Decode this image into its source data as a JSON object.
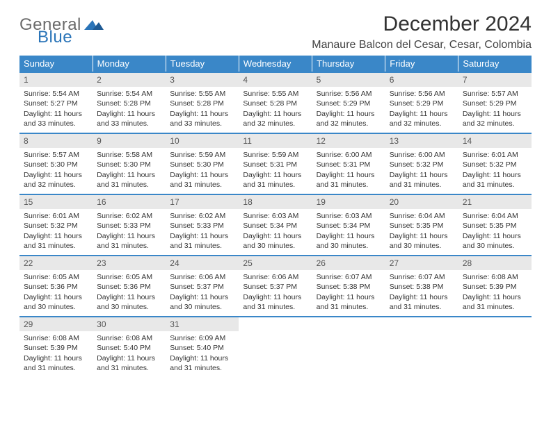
{
  "brand": {
    "general": "General",
    "blue": "Blue"
  },
  "title": "December 2024",
  "location": "Manaure Balcon del Cesar, Cesar, Colombia",
  "colors": {
    "header_bg": "#3a87c8",
    "header_text": "#ffffff",
    "daynum_bg": "#e8e8e8",
    "row_border": "#3a87c8",
    "logo_gray": "#6b6b6b",
    "logo_blue": "#2a74b8"
  },
  "weekdays": [
    "Sunday",
    "Monday",
    "Tuesday",
    "Wednesday",
    "Thursday",
    "Friday",
    "Saturday"
  ],
  "days": [
    {
      "n": 1,
      "sr": "5:54 AM",
      "ss": "5:27 PM",
      "dl": "11 hours and 33 minutes."
    },
    {
      "n": 2,
      "sr": "5:54 AM",
      "ss": "5:28 PM",
      "dl": "11 hours and 33 minutes."
    },
    {
      "n": 3,
      "sr": "5:55 AM",
      "ss": "5:28 PM",
      "dl": "11 hours and 33 minutes."
    },
    {
      "n": 4,
      "sr": "5:55 AM",
      "ss": "5:28 PM",
      "dl": "11 hours and 32 minutes."
    },
    {
      "n": 5,
      "sr": "5:56 AM",
      "ss": "5:29 PM",
      "dl": "11 hours and 32 minutes."
    },
    {
      "n": 6,
      "sr": "5:56 AM",
      "ss": "5:29 PM",
      "dl": "11 hours and 32 minutes."
    },
    {
      "n": 7,
      "sr": "5:57 AM",
      "ss": "5:29 PM",
      "dl": "11 hours and 32 minutes."
    },
    {
      "n": 8,
      "sr": "5:57 AM",
      "ss": "5:30 PM",
      "dl": "11 hours and 32 minutes."
    },
    {
      "n": 9,
      "sr": "5:58 AM",
      "ss": "5:30 PM",
      "dl": "11 hours and 31 minutes."
    },
    {
      "n": 10,
      "sr": "5:59 AM",
      "ss": "5:30 PM",
      "dl": "11 hours and 31 minutes."
    },
    {
      "n": 11,
      "sr": "5:59 AM",
      "ss": "5:31 PM",
      "dl": "11 hours and 31 minutes."
    },
    {
      "n": 12,
      "sr": "6:00 AM",
      "ss": "5:31 PM",
      "dl": "11 hours and 31 minutes."
    },
    {
      "n": 13,
      "sr": "6:00 AM",
      "ss": "5:32 PM",
      "dl": "11 hours and 31 minutes."
    },
    {
      "n": 14,
      "sr": "6:01 AM",
      "ss": "5:32 PM",
      "dl": "11 hours and 31 minutes."
    },
    {
      "n": 15,
      "sr": "6:01 AM",
      "ss": "5:32 PM",
      "dl": "11 hours and 31 minutes."
    },
    {
      "n": 16,
      "sr": "6:02 AM",
      "ss": "5:33 PM",
      "dl": "11 hours and 31 minutes."
    },
    {
      "n": 17,
      "sr": "6:02 AM",
      "ss": "5:33 PM",
      "dl": "11 hours and 31 minutes."
    },
    {
      "n": 18,
      "sr": "6:03 AM",
      "ss": "5:34 PM",
      "dl": "11 hours and 30 minutes."
    },
    {
      "n": 19,
      "sr": "6:03 AM",
      "ss": "5:34 PM",
      "dl": "11 hours and 30 minutes."
    },
    {
      "n": 20,
      "sr": "6:04 AM",
      "ss": "5:35 PM",
      "dl": "11 hours and 30 minutes."
    },
    {
      "n": 21,
      "sr": "6:04 AM",
      "ss": "5:35 PM",
      "dl": "11 hours and 30 minutes."
    },
    {
      "n": 22,
      "sr": "6:05 AM",
      "ss": "5:36 PM",
      "dl": "11 hours and 30 minutes."
    },
    {
      "n": 23,
      "sr": "6:05 AM",
      "ss": "5:36 PM",
      "dl": "11 hours and 30 minutes."
    },
    {
      "n": 24,
      "sr": "6:06 AM",
      "ss": "5:37 PM",
      "dl": "11 hours and 30 minutes."
    },
    {
      "n": 25,
      "sr": "6:06 AM",
      "ss": "5:37 PM",
      "dl": "11 hours and 31 minutes."
    },
    {
      "n": 26,
      "sr": "6:07 AM",
      "ss": "5:38 PM",
      "dl": "11 hours and 31 minutes."
    },
    {
      "n": 27,
      "sr": "6:07 AM",
      "ss": "5:38 PM",
      "dl": "11 hours and 31 minutes."
    },
    {
      "n": 28,
      "sr": "6:08 AM",
      "ss": "5:39 PM",
      "dl": "11 hours and 31 minutes."
    },
    {
      "n": 29,
      "sr": "6:08 AM",
      "ss": "5:39 PM",
      "dl": "11 hours and 31 minutes."
    },
    {
      "n": 30,
      "sr": "6:08 AM",
      "ss": "5:40 PM",
      "dl": "11 hours and 31 minutes."
    },
    {
      "n": 31,
      "sr": "6:09 AM",
      "ss": "5:40 PM",
      "dl": "11 hours and 31 minutes."
    }
  ],
  "labels": {
    "sunrise": "Sunrise:",
    "sunset": "Sunset:",
    "daylight": "Daylight:"
  },
  "layout": {
    "first_weekday_index": 0,
    "weeks": 5,
    "cols": 7,
    "trailing_empty": 4
  }
}
